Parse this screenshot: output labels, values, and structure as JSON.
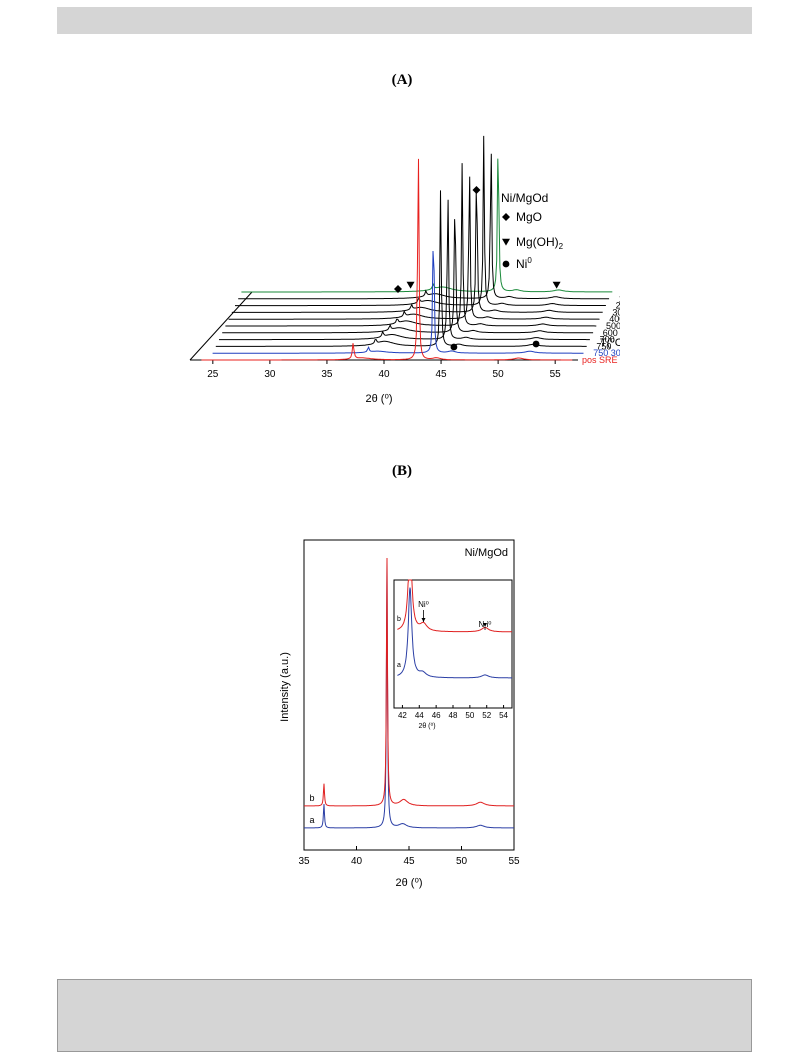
{
  "panels": {
    "a": {
      "label": "(A)"
    },
    "b": {
      "label": "(B)"
    }
  },
  "chart_data": [
    {
      "type": "line",
      "panel": "A",
      "xlabel": "2θ (⁰)",
      "ylabel": "",
      "xlim": [
        23,
        57
      ],
      "x_ticks": [
        "25",
        "30",
        "35",
        "40",
        "45",
        "50",
        "55"
      ],
      "z_axis_label": "T(⁰C)",
      "series_labels": [
        "pos SRE",
        "750  30min",
        "750",
        "700",
        "600",
        "500",
        "400",
        "300",
        "200",
        "100",
        "25"
      ],
      "series_colors": [
        "#e8201e",
        "#1f3fbf",
        "#000000",
        "#000000",
        "#000000",
        "#000000",
        "#000000",
        "#000000",
        "#000000",
        "#000000",
        "#1a8a3a"
      ],
      "peaks": [
        {
          "phase": "MgO",
          "position": 43.0,
          "relative_intensity": 1.0
        },
        {
          "phase": "Mg(OH)2",
          "position": 38.0,
          "relative_intensity": 0.05
        },
        {
          "phase": "Ni",
          "position": 44.5,
          "relative_intensity": 0.03
        },
        {
          "phase": "Ni",
          "position": 51.8,
          "relative_intensity": 0.02
        }
      ],
      "legend": {
        "title": "Ni/MgOd",
        "entries": [
          {
            "symbol": "diamond",
            "label": "MgO"
          },
          {
            "symbol": "triangle-down",
            "label": "Mg(OH)",
            "sub": "2"
          },
          {
            "symbol": "circle",
            "label": "Ni",
            "sup": "0"
          }
        ],
        "placement": "top-right"
      },
      "marker_annotations": [
        {
          "symbol": "diamond",
          "x": 40.0
        },
        {
          "symbol": "triangle-down",
          "x": 41.1
        },
        {
          "symbol": "diamond",
          "x": 46.0
        },
        {
          "symbol": "triangle-down",
          "x": 53.9
        },
        {
          "symbol": "circle",
          "x": 44.9
        },
        {
          "symbol": "circle",
          "x": 52.1
        }
      ]
    },
    {
      "type": "line",
      "panel": "B",
      "title": "Ni/MgOd",
      "xlabel": "2θ (⁰)",
      "ylabel": "Intensity (a.u.)",
      "xlim": [
        35,
        55
      ],
      "x_ticks": [
        "35",
        "40",
        "45",
        "50",
        "55"
      ],
      "series": [
        {
          "name": "a",
          "color": "#2b3fa5",
          "peaks": [
            {
              "x": 36.9,
              "h": 0.09
            },
            {
              "x": 42.9,
              "h": 1.0
            },
            {
              "x": 44.4,
              "h": 0.015
            },
            {
              "x": 51.8,
              "h": 0.01
            }
          ]
        },
        {
          "name": "b",
          "color": "#e02020",
          "peaks": [
            {
              "x": 36.9,
              "h": 0.09
            },
            {
              "x": 42.9,
              "h": 1.0
            },
            {
              "x": 44.5,
              "h": 0.025
            },
            {
              "x": 51.8,
              "h": 0.015
            }
          ]
        }
      ],
      "inset": {
        "xlim": [
          41,
          55
        ],
        "x_ticks": [
          "42",
          "44",
          "46",
          "48",
          "50",
          "52",
          "54"
        ],
        "xlabel": "2θ (⁰)",
        "annotations": [
          {
            "label": "Ni⁰",
            "x": 44.5
          },
          {
            "label": "N i⁰",
            "x": 51.8
          }
        ]
      }
    }
  ]
}
